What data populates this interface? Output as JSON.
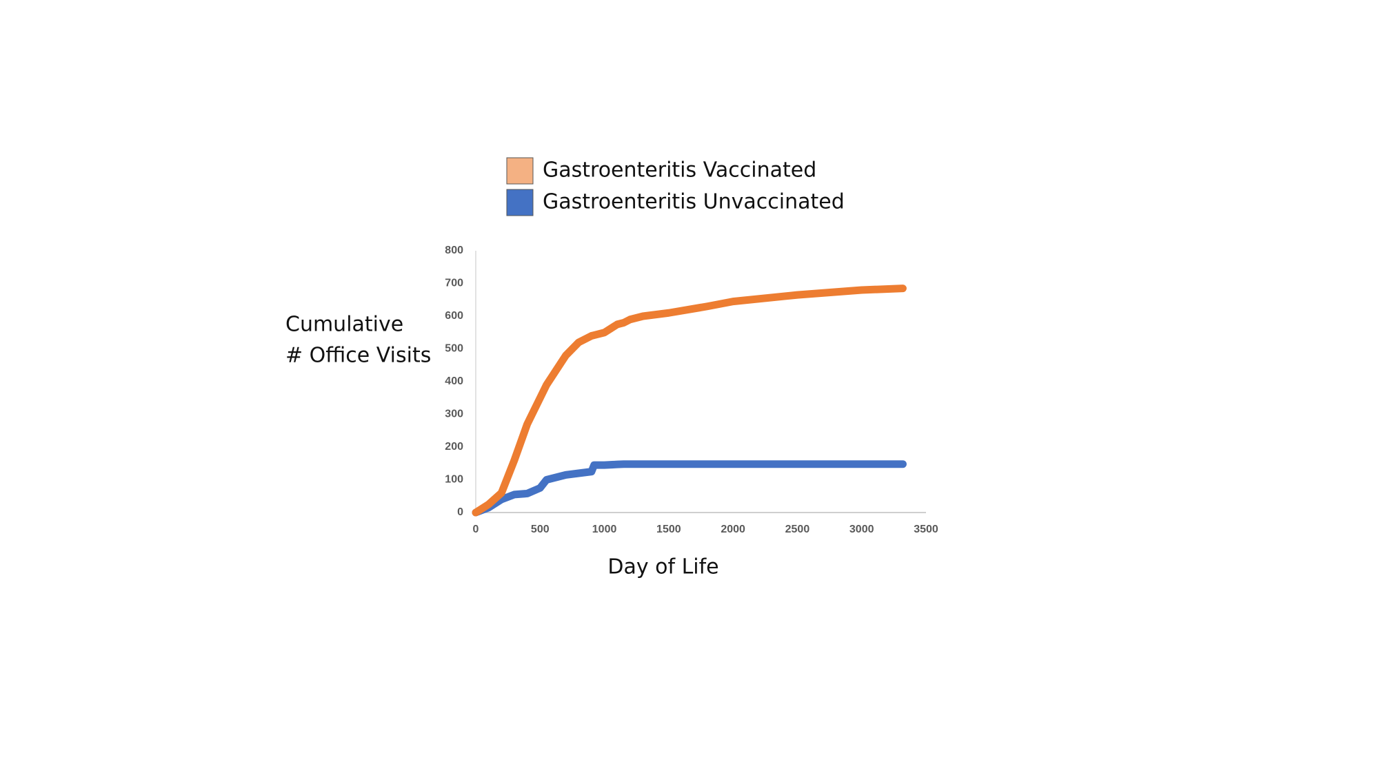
{
  "chart_data": {
    "type": "line",
    "ylabel": [
      "Cumulative",
      "# Office Visits"
    ],
    "xlabel": "Day of Life",
    "x": [
      0,
      100,
      200,
      300,
      400,
      500,
      550,
      600,
      700,
      800,
      900,
      920,
      1000,
      1100,
      1150,
      1200,
      1300,
      1500,
      1800,
      2000,
      2500,
      3000,
      3320
    ],
    "series": [
      {
        "name": "Gastroenteritis Vaccinated",
        "color": "#ed7d31",
        "legend_color": "#f4b183",
        "values": [
          0,
          25,
          60,
          160,
          270,
          350,
          390,
          420,
          480,
          520,
          540,
          542,
          550,
          575,
          580,
          590,
          600,
          610,
          630,
          645,
          665,
          680,
          685
        ]
      },
      {
        "name": "Gastroenteritis Unvaccinated",
        "color": "#4472c4",
        "legend_color": "#4472c4",
        "values": [
          0,
          15,
          40,
          55,
          58,
          75,
          100,
          105,
          115,
          120,
          125,
          145,
          145,
          147,
          148,
          148,
          148,
          148,
          148,
          148,
          148,
          148,
          148
        ]
      }
    ],
    "xlim": [
      0,
      3500
    ],
    "xticks": [
      0,
      500,
      1000,
      1500,
      2000,
      2500,
      3000,
      3500
    ],
    "ylim": [
      0,
      800
    ],
    "yticks": [
      0,
      100,
      200,
      300,
      400,
      500,
      600,
      700,
      800
    ],
    "grid": false
  }
}
